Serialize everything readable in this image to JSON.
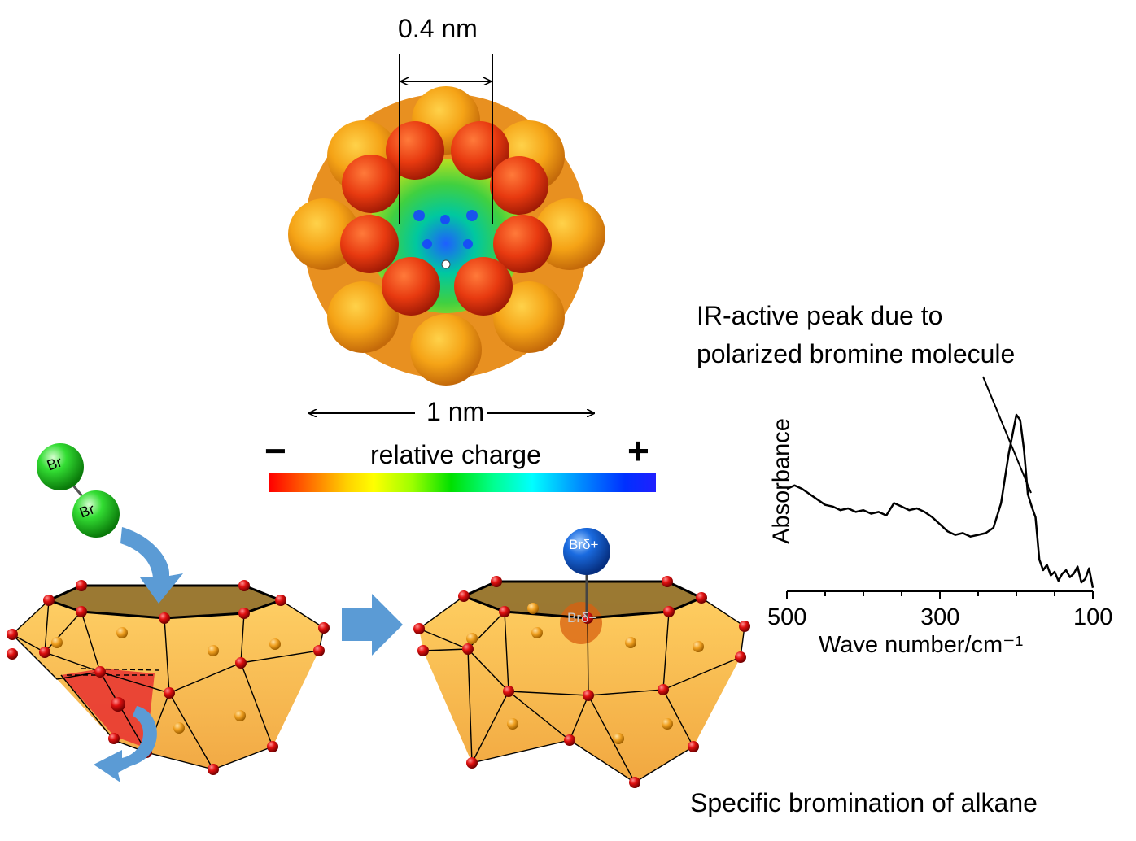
{
  "top": {
    "pore_label": "0.4 nm",
    "size_label": "1 nm",
    "charge_label": "relative charge",
    "minus_sign": "−",
    "plus_sign": "+",
    "gradient_colors": [
      "#ff0000",
      "#ff6a00",
      "#ffd000",
      "#ffff00",
      "#9cff00",
      "#00e000",
      "#00ff90",
      "#00ffff",
      "#0090ff",
      "#0030ff",
      "#2020ff"
    ]
  },
  "molecules": {
    "br_label_1": "Br",
    "br_label_2": "Br",
    "br_delta_plus": "Brδ+",
    "br_delta_minus": "Brδ−"
  },
  "annotation": {
    "line1": "IR-active peak due to",
    "line2": "polarized bromine molecule"
  },
  "chart_data": {
    "type": "line",
    "xlabel": "Wave number/cm⁻¹",
    "ylabel": "Absorbance",
    "xlim": [
      500,
      100
    ],
    "ticks": [
      "500",
      "300",
      "100"
    ],
    "tick_values": [
      500,
      300,
      100
    ],
    "ylim": [
      0,
      1
    ],
    "series": [
      {
        "x": [
          500,
          490,
          480,
          470,
          460,
          450,
          440,
          430,
          420,
          410,
          400,
          390,
          380,
          370,
          360,
          350,
          340,
          330,
          320,
          310,
          300,
          290,
          280,
          270,
          260,
          250,
          240,
          230,
          220,
          210,
          200,
          195,
          190,
          185,
          180,
          175,
          170,
          165,
          160,
          155,
          150,
          145,
          140,
          135,
          130,
          125,
          120,
          115,
          110,
          105,
          100
        ],
        "y": [
          0.58,
          0.6,
          0.58,
          0.55,
          0.52,
          0.49,
          0.48,
          0.46,
          0.47,
          0.45,
          0.46,
          0.44,
          0.45,
          0.43,
          0.5,
          0.48,
          0.46,
          0.47,
          0.45,
          0.42,
          0.38,
          0.34,
          0.32,
          0.33,
          0.31,
          0.32,
          0.33,
          0.36,
          0.5,
          0.78,
          1.0,
          0.97,
          0.8,
          0.55,
          0.48,
          0.42,
          0.18,
          0.12,
          0.15,
          0.09,
          0.11,
          0.06,
          0.1,
          0.12,
          0.08,
          0.1,
          0.14,
          0.05,
          0.07,
          0.13,
          0.02
        ]
      }
    ]
  },
  "caption": "Specific bromination of alkane"
}
